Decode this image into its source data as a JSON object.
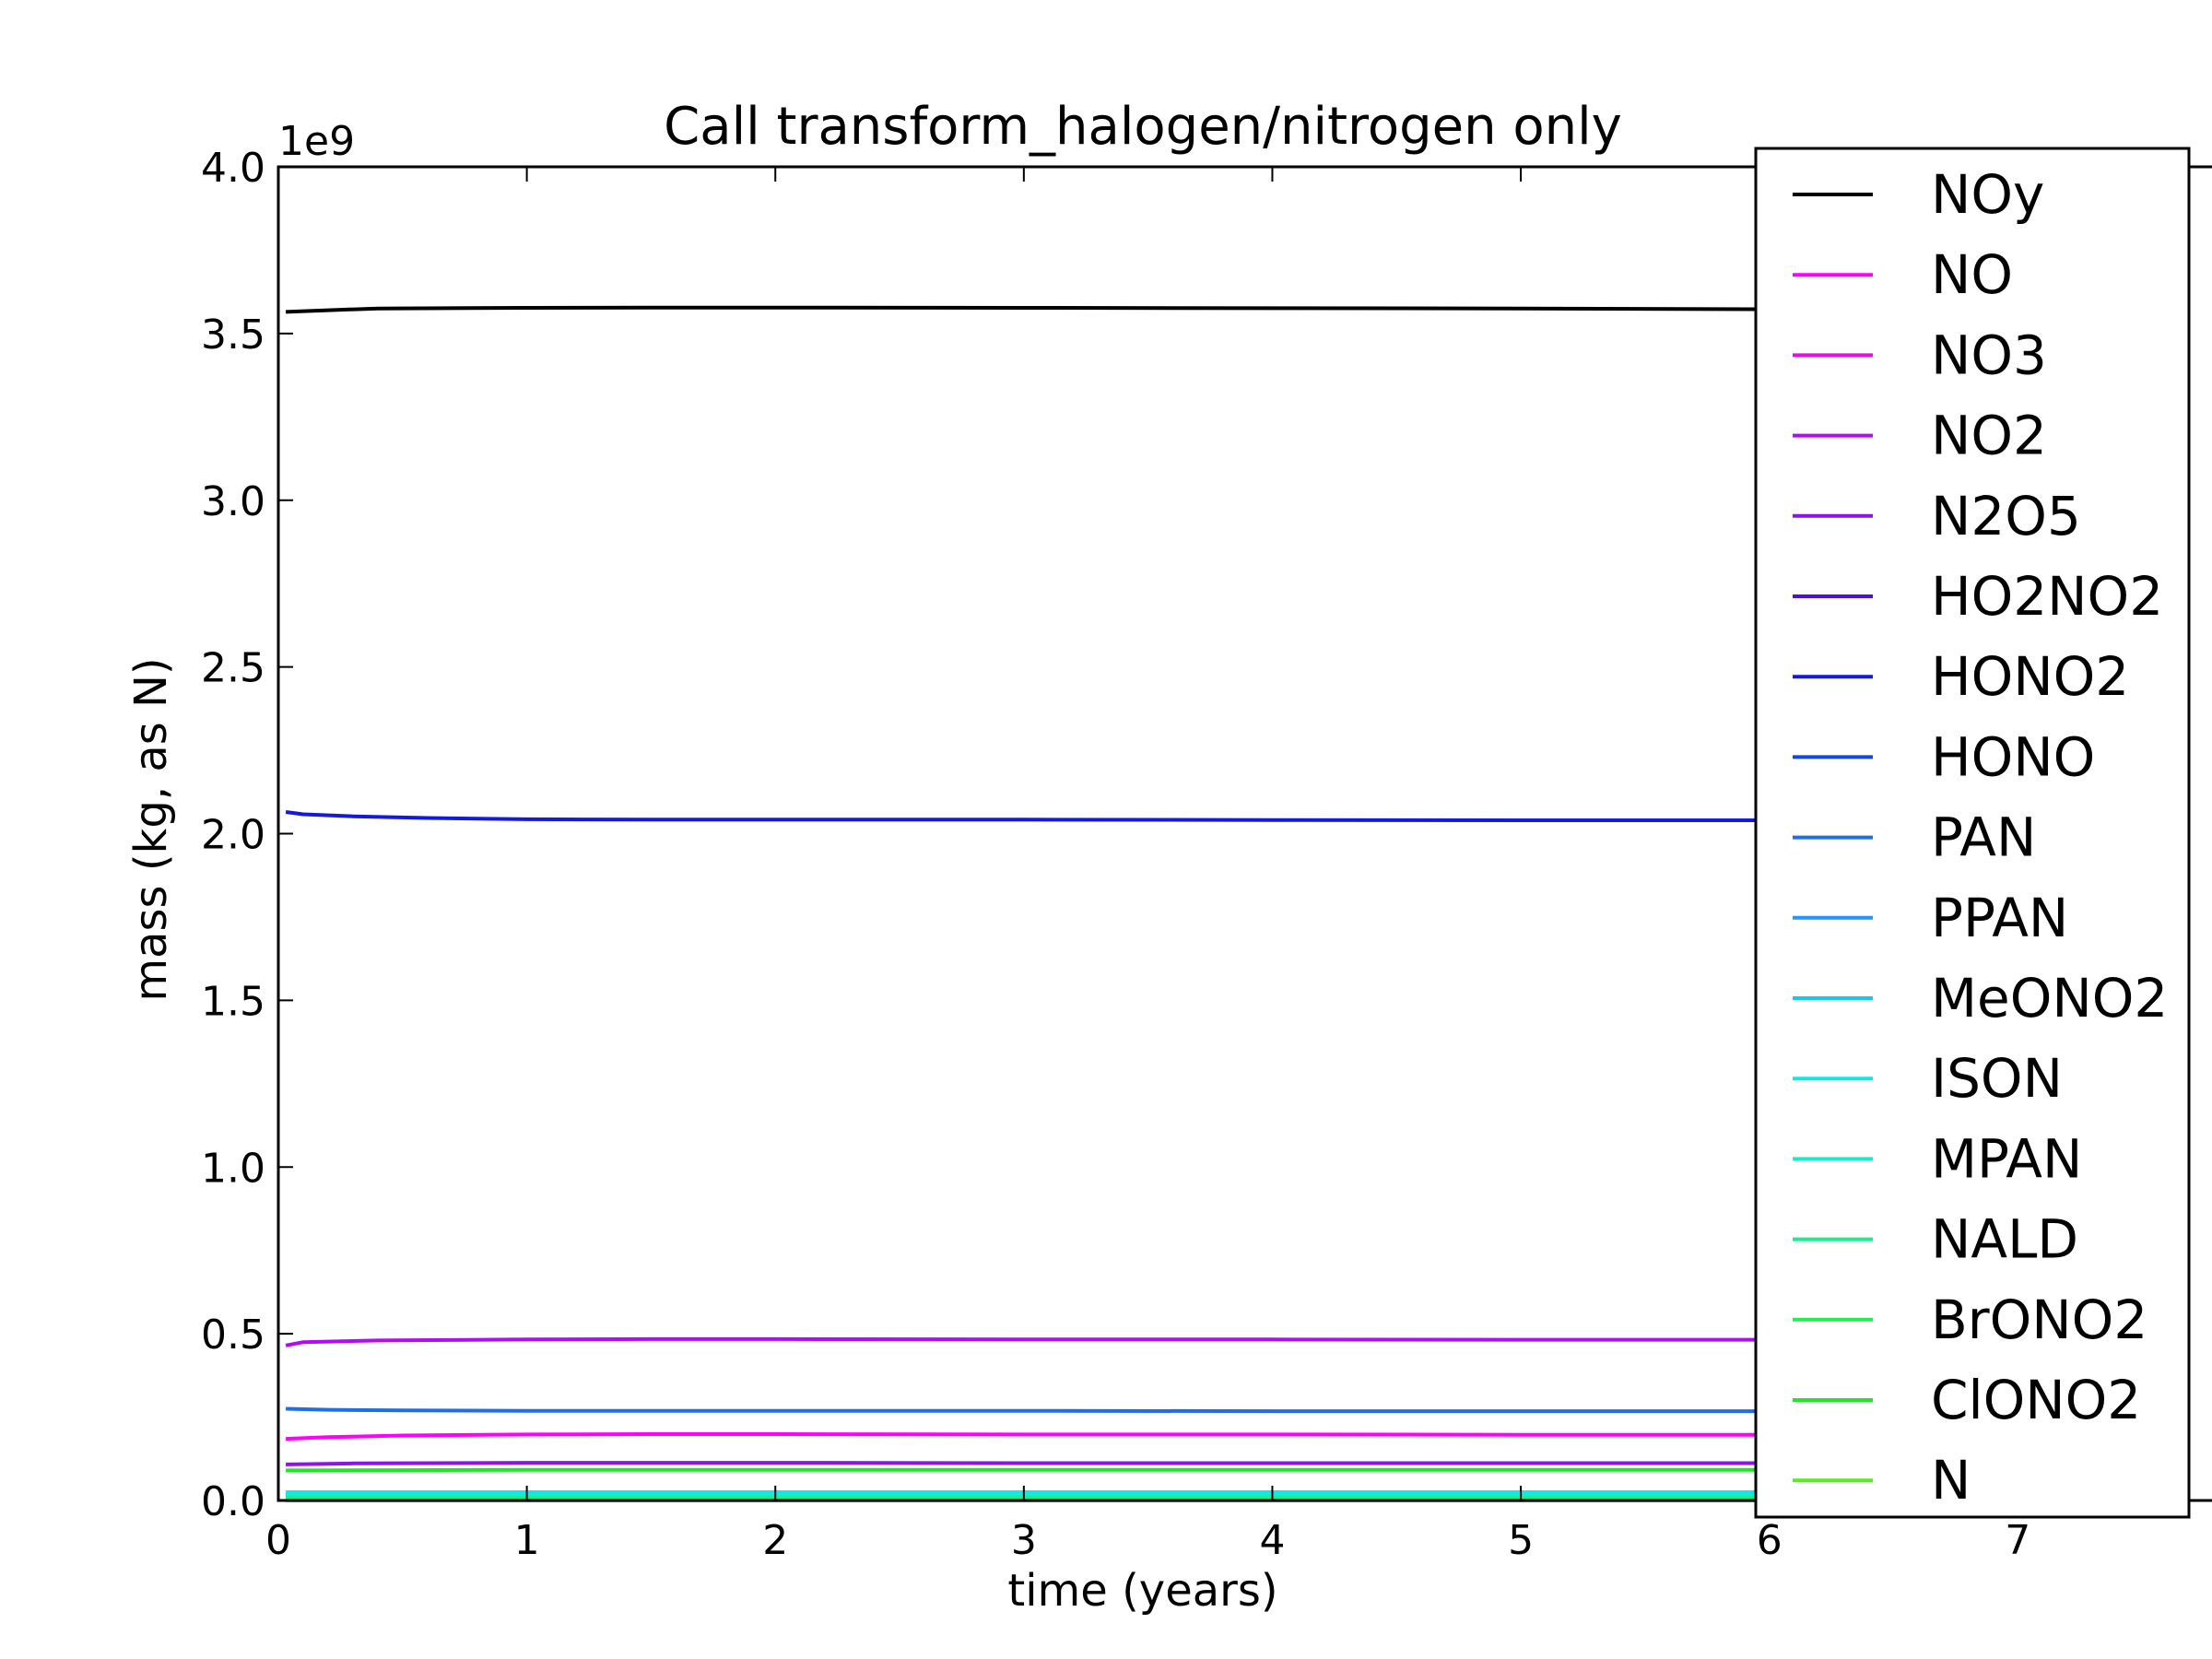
{
  "chart_data": {
    "type": "line",
    "title": "Call transform_halogen/nitrogen only",
    "xlabel": "time (years)",
    "ylabel": "mass (kg, as N)",
    "y_offset_label": "1e9",
    "xlim": [
      0,
      7.8
    ],
    "ylim": [
      0,
      4.0
    ],
    "x_ticks": [
      0,
      1,
      2,
      3,
      4,
      5,
      6,
      7
    ],
    "x_tick_labels": [
      "0",
      "1",
      "2",
      "3",
      "4",
      "5",
      "6",
      "7"
    ],
    "y_ticks": [
      0,
      0.5,
      1.0,
      1.5,
      2.0,
      2.5,
      3.0,
      3.5,
      4.0
    ],
    "y_tick_labels": [
      "0.0",
      "0.5",
      "1.0",
      "1.5",
      "2.0",
      "2.5",
      "3.0",
      "3.5",
      "4.0"
    ],
    "grid": false,
    "legend_position": "right (overlapping plot edge)",
    "series": [
      {
        "name": "NOy",
        "color": "#000000",
        "x": [
          0.03,
          0.2,
          0.4,
          1.0,
          1.5,
          2.0,
          3.0,
          4.0,
          5.0,
          6.0
        ],
        "y": [
          3.565,
          3.57,
          3.575,
          3.577,
          3.578,
          3.578,
          3.577,
          3.576,
          3.575,
          3.573
        ]
      },
      {
        "name": "NO",
        "color": "#ff00ff",
        "x": [
          0.03,
          0.2,
          0.5,
          1.0,
          1.5,
          2.0,
          3.0,
          4.0,
          5.0,
          6.0
        ],
        "y": [
          0.185,
          0.19,
          0.195,
          0.198,
          0.199,
          0.199,
          0.198,
          0.198,
          0.197,
          0.197
        ]
      },
      {
        "name": "NO3",
        "color": "#e60de6",
        "x": [
          0.03,
          6.0
        ],
        "y": [
          0.0,
          0.0
        ]
      },
      {
        "name": "NO2",
        "color": "#b20bf5",
        "x": [
          0.03,
          0.1,
          0.4,
          1.0,
          1.5,
          2.0,
          3.0,
          4.0,
          5.0,
          6.0
        ],
        "y": [
          0.465,
          0.475,
          0.48,
          0.483,
          0.484,
          0.484,
          0.483,
          0.483,
          0.482,
          0.482
        ]
      },
      {
        "name": "N2O5",
        "color": "#8c14e8",
        "x": [
          0.03,
          0.3,
          1.0,
          2.0,
          3.0,
          4.0,
          5.0,
          6.0
        ],
        "y": [
          0.108,
          0.111,
          0.113,
          0.113,
          0.112,
          0.112,
          0.112,
          0.112
        ]
      },
      {
        "name": "HO2NO2",
        "color": "#4b0fe0",
        "x": [
          0.03,
          6.0
        ],
        "y": [
          0.004,
          0.004
        ]
      },
      {
        "name": "HONO2",
        "color": "#1419dc",
        "x": [
          0.03,
          0.1,
          0.3,
          0.6,
          1.0,
          1.5,
          2.0,
          3.0,
          4.0,
          5.0,
          6.0
        ],
        "y": [
          2.065,
          2.058,
          2.052,
          2.047,
          2.043,
          2.042,
          2.042,
          2.042,
          2.041,
          2.04,
          2.04
        ]
      },
      {
        "name": "HONO",
        "color": "#1446e6",
        "x": [
          0.03,
          6.0
        ],
        "y": [
          0.0,
          0.0
        ]
      },
      {
        "name": "PAN",
        "color": "#1e6ee6",
        "x": [
          0.03,
          0.2,
          0.5,
          1.0,
          2.0,
          3.0,
          4.0,
          5.0,
          6.0
        ],
        "y": [
          0.275,
          0.272,
          0.27,
          0.269,
          0.269,
          0.269,
          0.268,
          0.268,
          0.268
        ]
      },
      {
        "name": "PPAN",
        "color": "#1e9bf0",
        "x": [
          0.03,
          6.0
        ],
        "y": [
          0.012,
          0.012
        ]
      },
      {
        "name": "MeONO2",
        "color": "#14c8f0",
        "x": [
          0.03,
          6.0
        ],
        "y": [
          0.02,
          0.02
        ]
      },
      {
        "name": "ISON",
        "color": "#14e6e6",
        "x": [
          0.03,
          6.0
        ],
        "y": [
          0.025,
          0.025
        ]
      },
      {
        "name": "MPAN",
        "color": "#14f0c3",
        "x": [
          0.03,
          6.0
        ],
        "y": [
          0.015,
          0.015
        ]
      },
      {
        "name": "NALD",
        "color": "#14f08c",
        "x": [
          0.03,
          6.0
        ],
        "y": [
          0.008,
          0.008
        ]
      },
      {
        "name": "BrONO2",
        "color": "#1ef050",
        "x": [
          0.03,
          6.0
        ],
        "y": [
          0.003,
          0.003
        ]
      },
      {
        "name": "ClONO2",
        "color": "#1ee628",
        "x": [
          0.03,
          0.5,
          1.0,
          2.0,
          3.0,
          4.0,
          5.0,
          6.0
        ],
        "y": [
          0.09,
          0.091,
          0.092,
          0.092,
          0.092,
          0.092,
          0.092,
          0.092
        ]
      },
      {
        "name": "N",
        "color": "#50f01e",
        "x": [
          0.03,
          6.0
        ],
        "y": [
          0.0,
          0.0
        ]
      }
    ]
  }
}
